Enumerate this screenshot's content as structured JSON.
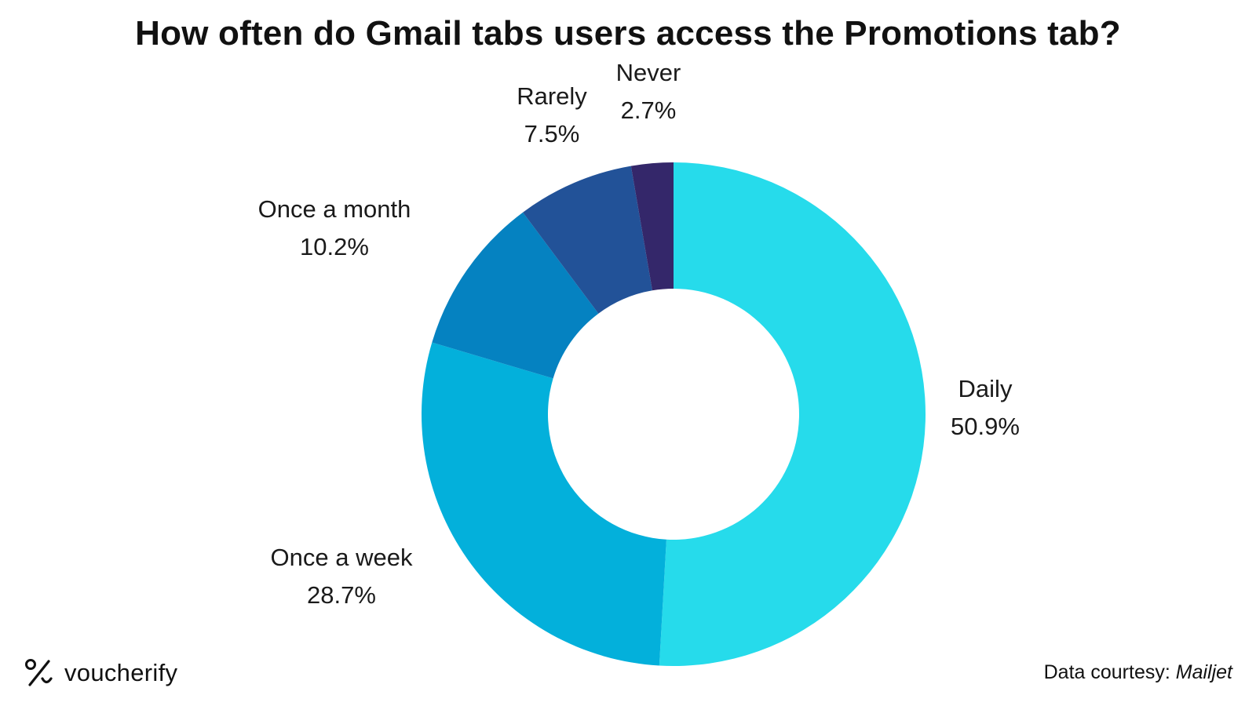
{
  "title": "How often do Gmail tabs users access the Promotions tab?",
  "brand": {
    "name": "voucherify",
    "icon": "percent-icon"
  },
  "courtesy": {
    "prefix": "Data courtesy:",
    "source": "Mailjet"
  },
  "chart_data": {
    "type": "pie",
    "variant": "donut",
    "title": "How often do Gmail tabs users access the Promotions tab?",
    "start": "12 o'clock",
    "direction": "clockwise",
    "slices": [
      {
        "label": "Daily",
        "value": 50.9,
        "display": "50.9%",
        "color": "#26dbeb"
      },
      {
        "label": "Once a week",
        "value": 28.7,
        "display": "28.7%",
        "color": "#03b0db"
      },
      {
        "label": "Once a month",
        "value": 10.2,
        "display": "10.2%",
        "color": "#0582c1"
      },
      {
        "label": "Rarely",
        "value": 7.5,
        "display": "7.5%",
        "color": "#225298"
      },
      {
        "label": "Never",
        "value": 2.7,
        "display": "2.7%",
        "color": "#34276a"
      }
    ]
  }
}
